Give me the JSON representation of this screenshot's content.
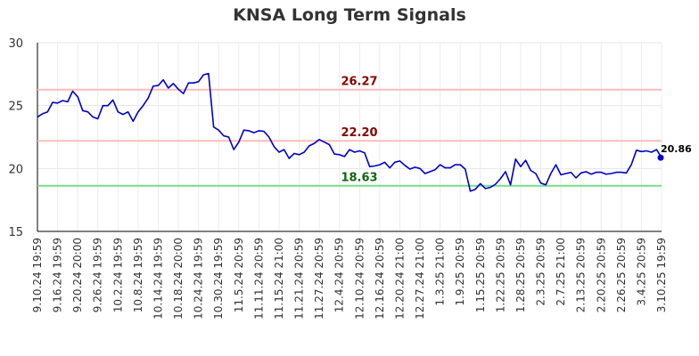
{
  "chart_data": {
    "type": "line",
    "title": "KNSA Long Term Signals",
    "ylim": [
      15,
      30
    ],
    "y_ticks": [
      "15",
      "20",
      "25",
      "30"
    ],
    "grid": true,
    "x_tick_labels": [
      "9.10.24 19:59",
      "9.16.24 19:59",
      "9.20.24 20:00",
      "9.26.24 19:59",
      "10.2.24 19:59",
      "10.8.24 19:59",
      "10.14.24 19:59",
      "10.18.24 20:00",
      "10.24.24 19:59",
      "10.30.24 19:59",
      "11.5.24 20:59",
      "11.11.24 20:59",
      "11.15.24 21:00",
      "11.21.24 20:59",
      "11.27.24 20:59",
      "12.4.24 20:59",
      "12.10.24 20:59",
      "12.16.24 20:59",
      "12.20.24 21:00",
      "12.27.24 21:00",
      "1.3.25 21:00",
      "1.9.25 20:59",
      "1.15.25 20:59",
      "1.22.25 20:59",
      "1.28.25 20:59",
      "2.3.25 20:59",
      "2.7.25 21:00",
      "2.13.25 20:59",
      "2.20.25 20:59",
      "2.26.25 20:59",
      "3.4.25 20:59",
      "3.10.25 19:59"
    ],
    "series": [
      {
        "color": "#0000cc",
        "values": [
          24.1,
          24.35,
          24.5,
          25.25,
          25.2,
          25.4,
          25.3,
          26.15,
          25.7,
          24.6,
          24.5,
          24.1,
          23.95,
          25.0,
          25.0,
          25.45,
          24.5,
          24.3,
          24.5,
          23.75,
          24.5,
          25.0,
          25.6,
          26.55,
          26.6,
          27.05,
          26.4,
          26.75,
          26.3,
          25.95,
          26.8,
          26.8,
          26.9,
          27.45,
          27.55,
          23.3,
          23.05,
          22.6,
          22.5,
          21.5,
          22.1,
          23.05,
          23.0,
          22.85,
          23.0,
          22.95,
          22.5,
          21.75,
          21.3,
          21.5,
          20.8,
          21.2,
          21.1,
          21.3,
          21.8,
          22.0,
          22.3,
          22.1,
          21.9,
          21.15,
          21.1,
          20.95,
          21.5,
          21.3,
          21.4,
          21.25,
          20.15,
          20.2,
          20.3,
          20.5,
          20.05,
          20.5,
          20.6,
          20.25,
          19.95,
          20.1,
          20.0,
          19.6,
          19.75,
          19.9,
          20.3,
          20.05,
          20.05,
          20.3,
          20.3,
          19.95,
          18.2,
          18.35,
          18.8,
          18.4,
          18.5,
          18.75,
          19.2,
          19.75,
          18.7,
          20.75,
          20.15,
          20.65,
          19.85,
          19.6,
          18.85,
          18.7,
          19.6,
          20.3,
          19.5,
          19.6,
          19.7,
          19.25,
          19.65,
          19.75,
          19.55,
          19.7,
          19.7,
          19.55,
          19.6,
          19.7,
          19.7,
          19.65,
          20.3,
          21.45,
          21.35,
          21.4,
          21.3,
          21.5,
          20.86
        ]
      }
    ],
    "levels": [
      {
        "value": 26.27,
        "label": "26.27",
        "line_color": "#ffbbbb",
        "text_color": "#880000"
      },
      {
        "value": 22.2,
        "label": "22.20",
        "line_color": "#ffbbbb",
        "text_color": "#880000"
      },
      {
        "value": 18.63,
        "label": "18.63",
        "line_color": "#77dd88",
        "text_color": "#116611"
      }
    ],
    "last_value": 20.86,
    "last_label": "20.86"
  }
}
